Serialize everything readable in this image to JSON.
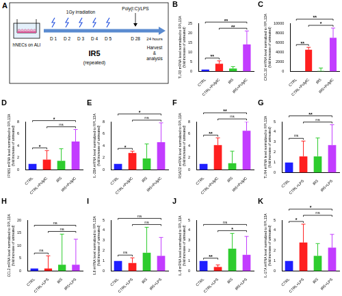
{
  "panel_a": {
    "panel": "A",
    "culture": "hNECs on ALI",
    "irradiation": "1Gy irradiation",
    "days": [
      "D 1",
      "D 2",
      "D 3",
      "D 4",
      "D 5",
      "D 28"
    ],
    "treatment": "IR5",
    "treatment_note": "(repeated)",
    "stimulus": "Poly(I:C)/LPS",
    "duration": "24 hours",
    "endpoint": [
      "Harvest",
      "&",
      "analysis"
    ]
  },
  "chart_data": [
    {
      "type": "bar",
      "panel": "B",
      "y_label": [
        "TLR3 mRNA level normalized to RPL13A",
        "(fold increase of untreated)"
      ],
      "categories": [
        "CTRL",
        "CTRL+PolyIC",
        "IR5",
        "IR5+PolyIC"
      ],
      "values": [
        1,
        4,
        1.5,
        14
      ],
      "errors": [
        0,
        1.5,
        1,
        7
      ],
      "colors": [
        "#1f1fff",
        "#ff1f1f",
        "#2ecc2e",
        "#c23cff"
      ],
      "ylim": [
        0,
        25
      ],
      "yticks": [
        0,
        5,
        10,
        15,
        20,
        25
      ],
      "grid": false,
      "annotations": [
        {
          "from": "CTRL",
          "to": "CTRL+PolyIC",
          "text": "**"
        },
        {
          "from": "CTRL+PolyIC",
          "to": "IR5+PolyIC",
          "text": "**"
        },
        {
          "from": "CTRL",
          "to": "IR5+PolyIC",
          "text": "**"
        }
      ]
    },
    {
      "type": "bar",
      "panel": "C",
      "y_label": [
        "CXCL10 mRNA level normalized to RPL13A",
        "(fold increase of untreated)"
      ],
      "categories": [
        "CTRL",
        "CTRL+PolyIC",
        "IR5",
        "IR5+PolyIC"
      ],
      "values": [
        1,
        4500,
        100,
        7000
      ],
      "errors": [
        0,
        500,
        600,
        2000
      ],
      "colors": [
        "#1f1fff",
        "#ff1f1f",
        "#2ecc2e",
        "#c23cff"
      ],
      "ylim": [
        0,
        10000
      ],
      "yticks": [
        0,
        2000,
        4000,
        6000,
        8000,
        10000
      ],
      "grid": false,
      "annotations": [
        {
          "from": "CTRL",
          "to": "CTRL+PolyIC",
          "text": "**"
        },
        {
          "from": "CTRL+PolyIC",
          "to": "IR5+PolyIC",
          "text": "*"
        },
        {
          "from": "CTRL",
          "to": "IR5+PolyIC",
          "text": "**"
        }
      ]
    },
    {
      "type": "bar",
      "panel": "D",
      "y_label": [
        "IFNB1 mRNA level normalized to RPL13A",
        "(fold increase of untreated)"
      ],
      "categories": [
        "CTRL",
        "CTRL+PolyIC",
        "IR5",
        "IR5+PolyIC"
      ],
      "values": [
        1,
        1.7,
        1.5,
        4.7
      ],
      "errors": [
        0,
        1.5,
        2,
        2
      ],
      "colors": [
        "#1f1fff",
        "#ff1f1f",
        "#2ecc2e",
        "#c23cff"
      ],
      "ylim": [
        0,
        8
      ],
      "yticks": [
        0,
        2,
        4,
        6,
        8
      ],
      "grid": false,
      "annotations": [
        {
          "from": "CTRL",
          "to": "CTRL+PolyIC",
          "text": "*"
        },
        {
          "from": "CTRL+PolyIC",
          "to": "IR5+PolyIC",
          "text": "ns"
        },
        {
          "from": "CTRL",
          "to": "IR5+PolyIC",
          "text": "*"
        }
      ]
    },
    {
      "type": "bar",
      "panel": "E",
      "y_label": [
        "IL-28A mRNA level normalized to RPL13A",
        "(fold increase of untreated)"
      ],
      "categories": [
        "CTRL",
        "CTRL+PolyIC",
        "IR5",
        "IR5+PolyIC"
      ],
      "values": [
        1,
        2.8,
        1.9,
        4.6
      ],
      "errors": [
        0,
        0.3,
        2.4,
        3.2
      ],
      "colors": [
        "#1f1fff",
        "#ff1f1f",
        "#2ecc2e",
        "#c23cff"
      ],
      "ylim": [
        0,
        8
      ],
      "yticks": [
        0,
        2,
        4,
        6,
        8
      ],
      "grid": false,
      "annotations": [
        {
          "from": "CTRL",
          "to": "CTRL+PolyIC",
          "text": "*"
        },
        {
          "from": "CTRL+PolyIC",
          "to": "IR5+PolyIC",
          "text": "ns"
        },
        {
          "from": "CTRL",
          "to": "IR5+PolyIC",
          "text": "*"
        }
      ]
    },
    {
      "type": "bar",
      "panel": "F",
      "y_label": [
        "RSAD2 mRNA level normalized to RPL13A",
        "(fold increase of untreated)"
      ],
      "categories": [
        "CTRL",
        "CTRL+PolyIC",
        "IR5",
        "IR5+PolyIC"
      ],
      "values": [
        1,
        4.1,
        1.1,
        6.5
      ],
      "errors": [
        0,
        1.2,
        2,
        1.5
      ],
      "colors": [
        "#1f1fff",
        "#ff1f1f",
        "#2ecc2e",
        "#c23cff"
      ],
      "ylim": [
        0,
        8
      ],
      "yticks": [
        0,
        2,
        4,
        6,
        8
      ],
      "grid": false,
      "annotations": [
        {
          "from": "CTRL",
          "to": "CTRL+PolyIC",
          "text": "**"
        },
        {
          "from": "CTRL+PolyIC",
          "to": "IR5+PolyIC",
          "text": "ns"
        },
        {
          "from": "CTRL",
          "to": "IR5+PolyIC",
          "text": "**"
        }
      ]
    },
    {
      "type": "bar",
      "panel": "G",
      "y_label": [
        "TLR4 mRNA level normalized to RPL13A",
        "(fold increase of untreated)"
      ],
      "categories": [
        "CTRL",
        "CTRL+LPS",
        "IR5",
        "IR5+LPS"
      ],
      "values": [
        1,
        1.6,
        1.6,
        2.7
      ],
      "errors": [
        0,
        1.5,
        1.8,
        2
      ],
      "colors": [
        "#1f1fff",
        "#ff1f1f",
        "#2ecc2e",
        "#c23cff"
      ],
      "ylim": [
        0,
        5
      ],
      "yticks": [
        0,
        1,
        2,
        3,
        4,
        5
      ],
      "grid": false,
      "annotations": [
        {
          "from": "CTRL",
          "to": "CTRL+LPS",
          "text": "ns"
        },
        {
          "from": "CTRL+LPS",
          "to": "IR5+LPS",
          "text": "ns"
        },
        {
          "from": "CTRL",
          "to": "IR5+LPS",
          "text": "**"
        }
      ]
    },
    {
      "type": "bar",
      "panel": "H",
      "y_label": [
        "CCL2 mRNA level normalized to RPL13A",
        "(fold increase of untreated)"
      ],
      "categories": [
        "CTRL",
        "CTRL+LPS",
        "IR5",
        "IR5+LPS"
      ],
      "values": [
        1,
        1,
        2.5,
        2.5
      ],
      "errors": [
        0,
        5,
        12,
        10
      ],
      "colors": [
        "#1f1fff",
        "#ff1f1f",
        "#2ecc2e",
        "#c23cff"
      ],
      "ylim": [
        0,
        20
      ],
      "yticks": [
        0,
        5,
        10,
        15,
        20
      ],
      "grid": false,
      "annotations": [
        {
          "from": "CTRL",
          "to": "CTRL+LPS",
          "text": "ns"
        },
        {
          "from": "CTRL+LPS",
          "to": "IR5+LPS",
          "text": "ns"
        },
        {
          "from": "CTRL",
          "to": "IR5+LPS",
          "text": "ns"
        }
      ]
    },
    {
      "type": "bar",
      "panel": "I",
      "y_label": [
        "IL6 mRNA level normalized to RPL13A",
        "(fold increase of untreated)"
      ],
      "categories": [
        "CTRL",
        "CTRL+LPS",
        "IR5",
        "IR5+LPS"
      ],
      "values": [
        1,
        0.8,
        1.8,
        1.5
      ],
      "errors": [
        0,
        0.5,
        2.5,
        1.8
      ],
      "colors": [
        "#1f1fff",
        "#ff1f1f",
        "#2ecc2e",
        "#c23cff"
      ],
      "ylim": [
        0,
        5
      ],
      "yticks": [
        0,
        1,
        2,
        3,
        4,
        5
      ],
      "grid": false,
      "annotations": [
        {
          "from": "CTRL",
          "to": "CTRL+LPS",
          "text": "ns"
        },
        {
          "from": "CTRL+LPS",
          "to": "IR5+LPS",
          "text": "ns"
        },
        {
          "from": "CTRL",
          "to": "IR5+LPS",
          "text": "ns"
        }
      ]
    },
    {
      "type": "bar",
      "panel": "J",
      "y_label": [
        "IL-8 mRNA level normalized to RPL13A",
        "(fold increase of untreated)"
      ],
      "categories": [
        "CTRL",
        "CTRL+LPS",
        "IR5",
        "IR5+LPS"
      ],
      "values": [
        1,
        0.4,
        2.2,
        1.6
      ],
      "errors": [
        0,
        0.2,
        1.5,
        1.8
      ],
      "colors": [
        "#1f1fff",
        "#ff1f1f",
        "#2ecc2e",
        "#c23cff"
      ],
      "ylim": [
        0,
        5
      ],
      "yticks": [
        0,
        1,
        2,
        3,
        4,
        5
      ],
      "grid": false,
      "annotations": [
        {
          "from": "CTRL",
          "to": "CTRL+LPS",
          "text": "**"
        },
        {
          "from": "CTRL+LPS",
          "to": "IR5+LPS",
          "text": "*"
        },
        {
          "from": "CTRL",
          "to": "IR5+LPS",
          "text": "ns"
        }
      ]
    },
    {
      "type": "bar",
      "panel": "K",
      "y_label": [
        "IL-17A mRNA level normalized to RPL13A",
        "(fold increase of untreated)"
      ],
      "categories": [
        "CTRL",
        "CTRL+LPS",
        "IR5",
        "IR5+LPS"
      ],
      "values": [
        1,
        2.8,
        1.5,
        2.3
      ],
      "errors": [
        0,
        1.8,
        1.2,
        1.3
      ],
      "colors": [
        "#1f1fff",
        "#ff1f1f",
        "#2ecc2e",
        "#c23cff"
      ],
      "ylim": [
        0,
        5
      ],
      "yticks": [
        0,
        1,
        2,
        3,
        4,
        5
      ],
      "grid": false,
      "annotations": [
        {
          "from": "CTRL",
          "to": "CTRL+LPS",
          "text": "*"
        },
        {
          "from": "CTRL+LPS",
          "to": "IR5+LPS",
          "text": "ns"
        },
        {
          "from": "CTRL",
          "to": "IR5+LPS",
          "text": "*"
        }
      ]
    }
  ]
}
